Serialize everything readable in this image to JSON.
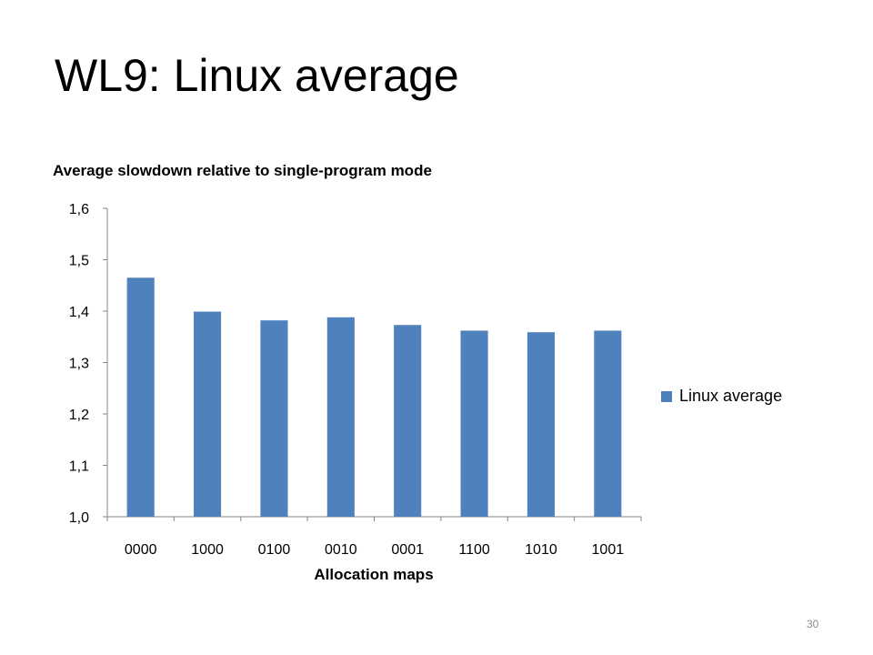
{
  "slide": {
    "title": "WL9: Linux average",
    "page_number": "30"
  },
  "chart_data": {
    "type": "bar",
    "title": "Average slowdown relative to single-program mode",
    "xlabel": "Allocation maps",
    "ylabel": "",
    "categories": [
      "0000",
      "1000",
      "0100",
      "0010",
      "0001",
      "1100",
      "1010",
      "1001"
    ],
    "series": [
      {
        "name": "Linux average",
        "color": "#4f81bd",
        "values": [
          1.465,
          1.399,
          1.382,
          1.388,
          1.373,
          1.362,
          1.359,
          1.362
        ]
      }
    ],
    "ylim": [
      1.0,
      1.6
    ],
    "yticks": [
      "1,0",
      "1,1",
      "1,2",
      "1,3",
      "1,4",
      "1,5",
      "1,6"
    ],
    "grid": false,
    "legend_position": "right"
  }
}
